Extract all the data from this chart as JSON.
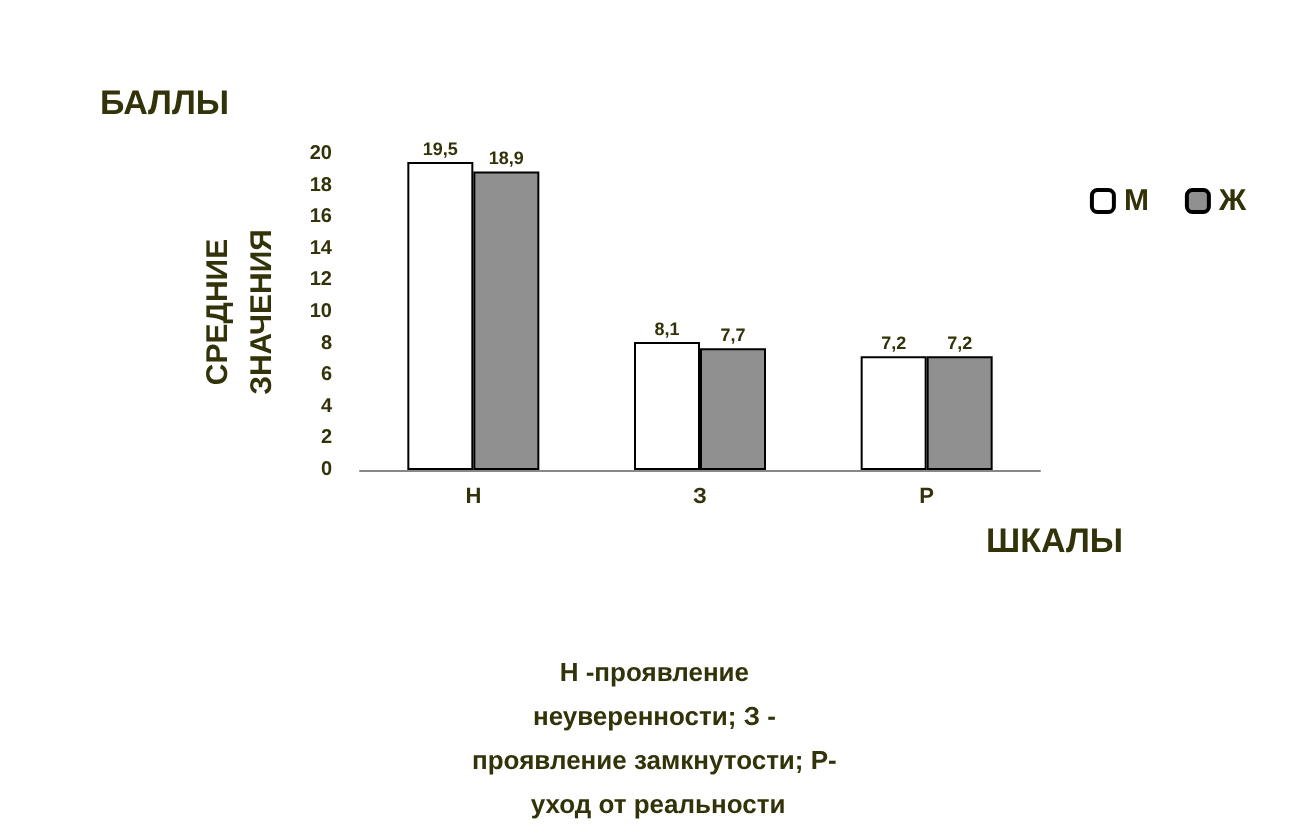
{
  "chart_data": {
    "type": "bar",
    "title": "БАЛЛЫ",
    "ylabel": "СРЕДНИЕ ЗНАЧЕНИЯ",
    "xlabel": "ШКАЛЫ",
    "annotations": [
      "Н -проявление неуверенности; З - проявление замкнутости; Р- уход от реальности"
    ],
    "categories": [
      "Н",
      "З",
      "Р"
    ],
    "series": [
      {
        "name": "М",
        "color": "#ffffff",
        "values": [
          19.5,
          8.1,
          7.2
        ],
        "value_labels": [
          "19,5",
          "8,1",
          "7,2"
        ]
      },
      {
        "name": "Ж",
        "color": "#909090",
        "values": [
          18.9,
          7.7,
          7.2
        ],
        "value_labels": [
          "18,9",
          "7,7",
          "7,2"
        ]
      }
    ],
    "ylim": [
      0,
      20
    ],
    "yticks": [
      0,
      2,
      4,
      6,
      8,
      10,
      12,
      14,
      16,
      18,
      20
    ],
    "grid": false,
    "legend": "top right"
  }
}
